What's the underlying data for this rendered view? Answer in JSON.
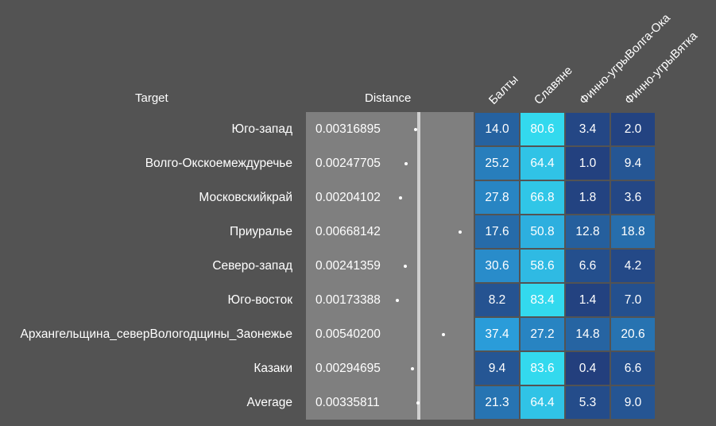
{
  "headers": {
    "target": "Target",
    "distance": "Distance"
  },
  "colors": {
    "background": "#535353",
    "distance_panel": "#7f7f7f",
    "bar": "#cfcfcf",
    "dot": "#ffffff",
    "heat_low": "#233e7c",
    "heat_mid": "#2a9ad8",
    "heat_high": "#33d9ee"
  },
  "chart_data": {
    "type": "table",
    "columns": [
      "Балты",
      "Славяне",
      "Финно-угрыВолга-Ока",
      "Финно-угрыВятка"
    ],
    "rows": [
      {
        "target": "Юго-запад",
        "distance": "0.00316895",
        "values": [
          "14.0",
          "80.6",
          "3.4",
          "2.0"
        ]
      },
      {
        "target": "Волго-Окскоемеждуречье",
        "distance": "0.00247705",
        "values": [
          "25.2",
          "64.4",
          "1.0",
          "9.4"
        ]
      },
      {
        "target": "Московскийкрай",
        "distance": "0.00204102",
        "values": [
          "27.8",
          "66.8",
          "1.8",
          "3.6"
        ]
      },
      {
        "target": "Приуралье",
        "distance": "0.00668142",
        "values": [
          "17.6",
          "50.8",
          "12.8",
          "18.8"
        ]
      },
      {
        "target": "Северо-запад",
        "distance": "0.00241359",
        "values": [
          "30.6",
          "58.6",
          "6.6",
          "4.2"
        ]
      },
      {
        "target": "Юго-восток",
        "distance": "0.00173388",
        "values": [
          "8.2",
          "83.4",
          "1.4",
          "7.0"
        ]
      },
      {
        "target": "Архангельщина_северВологодщины_Заонежье",
        "distance": "0.00540200",
        "values": [
          "37.4",
          "27.2",
          "14.8",
          "20.6"
        ]
      },
      {
        "target": "Казаки",
        "distance": "0.00294695",
        "values": [
          "9.4",
          "83.6",
          "0.4",
          "6.6"
        ]
      },
      {
        "target": "Average",
        "distance": "0.00335811",
        "values": [
          "21.3",
          "64.4",
          "5.3",
          "9.0"
        ]
      }
    ]
  }
}
